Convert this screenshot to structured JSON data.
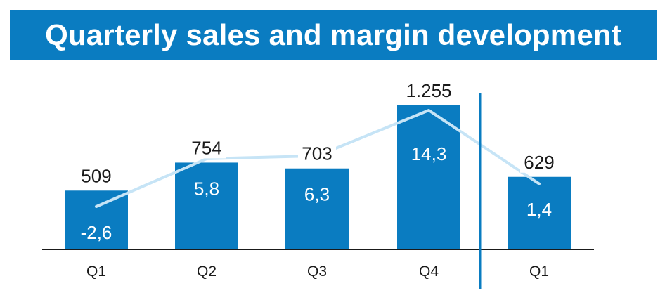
{
  "title": "Quarterly sales and margin development",
  "colors": {
    "title_bg": "#0a7cc1",
    "bar": "#0a7cc1",
    "line": "#c6e4f6",
    "axis": "#1a1a1a",
    "divider": "#0a7cc1"
  },
  "chart_data": {
    "type": "bar",
    "categories": [
      "Q1",
      "Q2",
      "Q3",
      "Q4",
      "Q1"
    ],
    "series": [
      {
        "values": [
          509,
          754,
          703,
          1255,
          629
        ],
        "labels": [
          "509",
          "754",
          "703",
          "1.255",
          "629"
        ]
      }
    ],
    "line_series": [
      {
        "values": [
          -2.6,
          5.8,
          6.3,
          14.3,
          1.4
        ],
        "labels": [
          "-2,6",
          "5,8",
          "6,3",
          "14,3",
          "1,4"
        ]
      }
    ],
    "ylim": [
      0,
      1255
    ],
    "line_ylim": [
      -2.6,
      14.3
    ],
    "divider_before_index": 4,
    "grid": false,
    "legend": "none"
  }
}
